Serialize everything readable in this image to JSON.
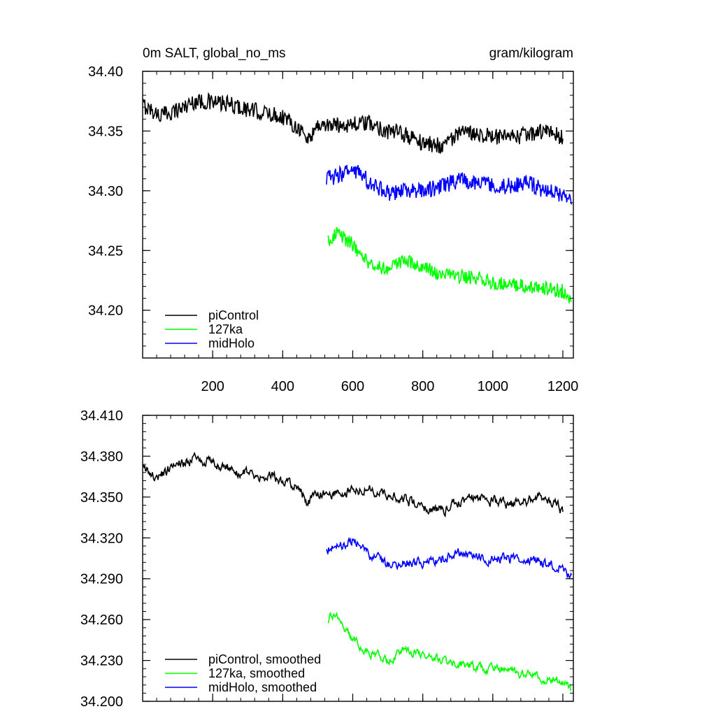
{
  "chart_data": [
    {
      "type": "line",
      "title_left": "0m SALT, global_no_ms",
      "title_right": "gram/kilogram",
      "xlabel": "",
      "ylabel": "",
      "xlim": [
        0,
        1230
      ],
      "ylim": [
        34.16,
        34.4
      ],
      "xticks": [
        200,
        400,
        600,
        800,
        1000,
        1200
      ],
      "xtick_labels": [
        "200",
        "400",
        "600",
        "800",
        "1000",
        "1200"
      ],
      "yticks": [
        34.2,
        34.25,
        34.3,
        34.35,
        34.4
      ],
      "ytick_labels": [
        "34.20",
        "34.25",
        "34.30",
        "34.35",
        "34.40"
      ],
      "legend_position": "bottom-left",
      "series": [
        {
          "name": "piControl",
          "color": "#000000",
          "noise": 0.007,
          "x": [
            0,
            50,
            100,
            150,
            200,
            250,
            300,
            350,
            400,
            450,
            470,
            500,
            550,
            600,
            650,
            700,
            750,
            800,
            850,
            900,
            950,
            1000,
            1050,
            1100,
            1150,
            1200
          ],
          "y": [
            34.372,
            34.363,
            34.368,
            34.375,
            34.374,
            34.372,
            34.368,
            34.365,
            34.362,
            34.352,
            34.342,
            34.355,
            34.355,
            34.356,
            34.356,
            34.35,
            34.347,
            34.34,
            34.338,
            34.347,
            34.349,
            34.345,
            34.344,
            34.347,
            34.35,
            34.345
          ]
        },
        {
          "name": "127ka",
          "color": "#00ff00",
          "noise": 0.006,
          "x": [
            530,
            550,
            600,
            650,
            700,
            750,
            800,
            850,
            900,
            950,
            1000,
            1050,
            1100,
            1150,
            1200,
            1225
          ],
          "y": [
            34.258,
            34.265,
            34.255,
            34.238,
            34.235,
            34.241,
            34.236,
            34.23,
            34.228,
            34.227,
            34.223,
            34.222,
            34.22,
            34.218,
            34.216,
            34.21
          ]
        },
        {
          "name": "midHolo",
          "color": "#0000ff",
          "noise": 0.007,
          "x": [
            525,
            550,
            600,
            650,
            700,
            750,
            800,
            850,
            900,
            950,
            1000,
            1050,
            1100,
            1150,
            1200,
            1225
          ],
          "y": [
            34.31,
            34.312,
            34.318,
            34.307,
            34.298,
            34.3,
            34.3,
            34.303,
            34.309,
            34.307,
            34.304,
            34.304,
            34.307,
            34.3,
            34.297,
            34.29
          ]
        }
      ]
    },
    {
      "type": "line",
      "xlabel": "",
      "ylabel": "",
      "xlim": [
        0,
        1230
      ],
      "ylim": [
        34.2,
        34.41
      ],
      "xticks": [
        200,
        400,
        600,
        800,
        1000,
        1200
      ],
      "yticks": [
        34.2,
        34.23,
        34.26,
        34.29,
        34.32,
        34.35,
        34.38,
        34.41
      ],
      "ytick_labels": [
        "34.200",
        "34.230",
        "34.260",
        "34.290",
        "34.320",
        "34.350",
        "34.380",
        "34.410"
      ],
      "legend_position": "bottom-left",
      "series": [
        {
          "name": "piControl, smoothed",
          "color": "#000000",
          "noise": 0.0035,
          "x": [
            0,
            50,
            100,
            150,
            200,
            250,
            300,
            350,
            400,
            450,
            470,
            500,
            550,
            600,
            650,
            700,
            750,
            800,
            850,
            900,
            950,
            1000,
            1050,
            1100,
            1150,
            1200
          ],
          "y": [
            34.37,
            34.365,
            34.375,
            34.378,
            34.375,
            34.37,
            34.367,
            34.365,
            34.363,
            34.355,
            34.345,
            34.353,
            34.354,
            34.355,
            34.356,
            34.351,
            34.349,
            34.342,
            34.34,
            34.346,
            34.35,
            34.347,
            34.345,
            34.348,
            34.35,
            34.34
          ]
        },
        {
          "name": "127ka, smoothed",
          "color": "#00ff00",
          "noise": 0.003,
          "x": [
            530,
            550,
            600,
            650,
            700,
            750,
            800,
            850,
            900,
            950,
            1000,
            1050,
            1100,
            1150,
            1200,
            1225
          ],
          "y": [
            34.26,
            34.265,
            34.245,
            34.235,
            34.23,
            34.238,
            34.235,
            34.23,
            34.228,
            34.225,
            34.224,
            34.222,
            34.22,
            34.217,
            34.215,
            34.208
          ]
        },
        {
          "name": "midHolo, smoothed",
          "color": "#0000ff",
          "noise": 0.0035,
          "x": [
            525,
            550,
            600,
            650,
            700,
            750,
            800,
            850,
            900,
            950,
            1000,
            1050,
            1100,
            1150,
            1200,
            1225
          ],
          "y": [
            34.312,
            34.314,
            34.318,
            34.308,
            34.3,
            34.302,
            34.301,
            34.305,
            34.309,
            34.307,
            34.305,
            34.304,
            34.306,
            34.301,
            34.298,
            34.29
          ]
        }
      ]
    }
  ]
}
